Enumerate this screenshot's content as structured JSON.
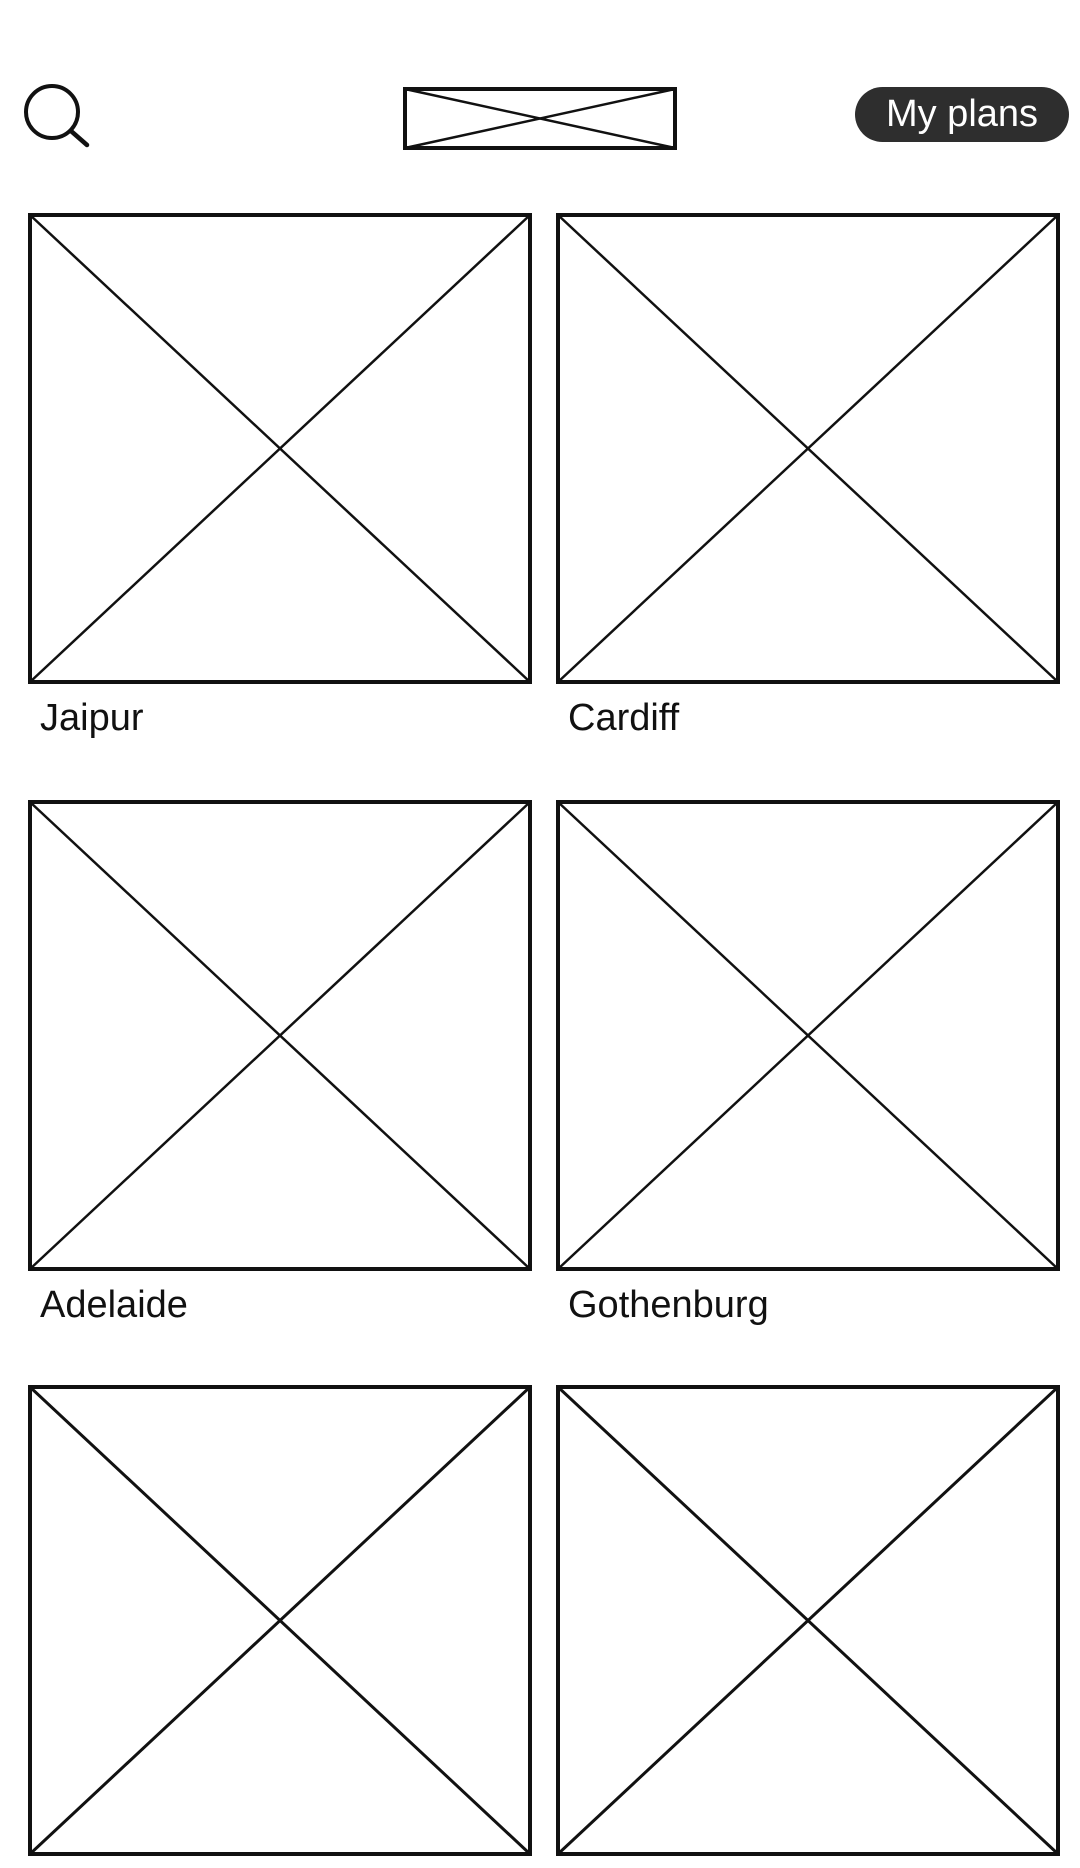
{
  "header": {
    "search_icon": "search-icon",
    "logo_icon": "image-placeholder-icon",
    "my_plans_label": "My plans"
  },
  "destinations": [
    {
      "label": "Jaipur"
    },
    {
      "label": "Cardiff"
    },
    {
      "label": "Adelaide"
    },
    {
      "label": "Gothenburg"
    },
    {
      "label": ""
    },
    {
      "label": ""
    }
  ]
}
